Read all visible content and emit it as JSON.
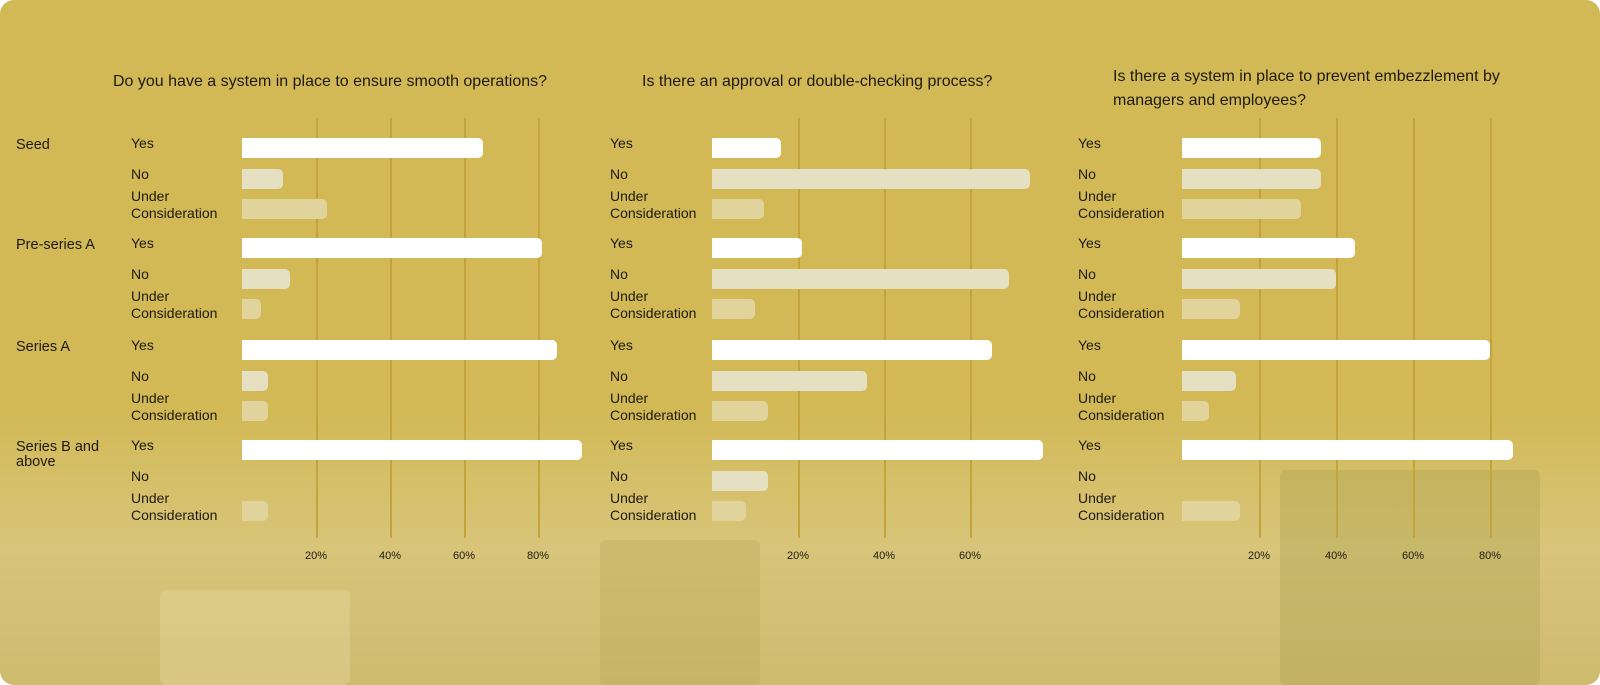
{
  "colors": {
    "Yes": "#ffffff",
    "No": "#e6e0c3",
    "Under Consideration": "#e0d39c",
    "grid": "#c4a23c"
  },
  "chart_data": [
    {
      "type": "bar",
      "orientation": "horizontal",
      "title": "Do you have a system in place to ensure smooth operations?",
      "groups": [
        "Seed",
        "Pre-series A",
        "Series A",
        "Series B and above"
      ],
      "options": [
        "Yes",
        "No",
        "Under Consideration"
      ],
      "ticks": [
        "20%",
        "40%",
        "60%",
        "80%"
      ],
      "xlim": [
        0,
        100
      ],
      "values": {
        "Seed": [
          65,
          11,
          23
        ],
        "Pre-series A": [
          81,
          13,
          5
        ],
        "Series A": [
          85,
          7,
          7
        ],
        "Series B and above": [
          92,
          0,
          7
        ]
      }
    },
    {
      "type": "bar",
      "orientation": "horizontal",
      "title": "Is there an approval or double-checking process?",
      "groups": [
        "Seed",
        "Pre-series A",
        "Series A",
        "Series B and above"
      ],
      "options": [
        "Yes",
        "No",
        "Under Consideration"
      ],
      "ticks": [
        "20%",
        "40%",
        "60%"
      ],
      "xlim": [
        0,
        80
      ],
      "values": {
        "Seed": [
          16,
          74,
          12
        ],
        "Pre-series A": [
          21,
          69,
          10
        ],
        "Series A": [
          65,
          36,
          13
        ],
        "Series B and above": [
          77,
          13,
          8
        ]
      }
    },
    {
      "type": "bar",
      "orientation": "horizontal",
      "title": "Is there a system in place to prevent embezzlement by managers and employees?",
      "groups": [
        "Seed",
        "Pre-series A",
        "Series A",
        "Series B and above"
      ],
      "options": [
        "Yes",
        "No",
        "Under Consideration"
      ],
      "ticks": [
        "20%",
        "40%",
        "60%",
        "80%"
      ],
      "xlim": [
        0,
        100
      ],
      "values": {
        "Seed": [
          36,
          36,
          31
        ],
        "Pre-series A": [
          45,
          40,
          15
        ],
        "Series A": [
          80,
          14,
          7
        ],
        "Series B and above": [
          86,
          0,
          15
        ]
      }
    }
  ]
}
